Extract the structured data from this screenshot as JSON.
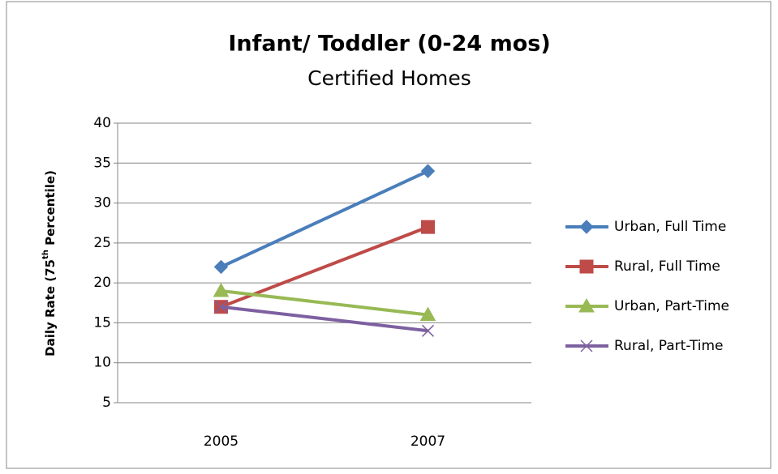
{
  "chart_data": {
    "type": "line",
    "title": "Infant/ Toddler (0-24 mos)",
    "subtitle": "Certified Homes",
    "y_label": [
      "Daily Rate (75",
      "th",
      " Percentile)"
    ],
    "categories": [
      "2005",
      "2007"
    ],
    "series": [
      {
        "name": "Urban, Full Time",
        "color": "#4a7ebb",
        "marker": "diamond",
        "values": [
          22,
          34
        ]
      },
      {
        "name": "Rural, Full Time",
        "color": "#be4b48",
        "marker": "square",
        "values": [
          17,
          27
        ]
      },
      {
        "name": "Urban, Part-Time",
        "color": "#98b954",
        "marker": "triangle",
        "values": [
          19,
          16
        ]
      },
      {
        "name": "Rural, Part-Time",
        "color": "#7d60a0",
        "marker": "x",
        "values": [
          17,
          14
        ]
      }
    ],
    "ylim": [
      5,
      40
    ],
    "yticks": [
      5,
      10,
      15,
      20,
      25,
      30,
      35,
      40
    ],
    "grid": true,
    "legend": "right"
  }
}
